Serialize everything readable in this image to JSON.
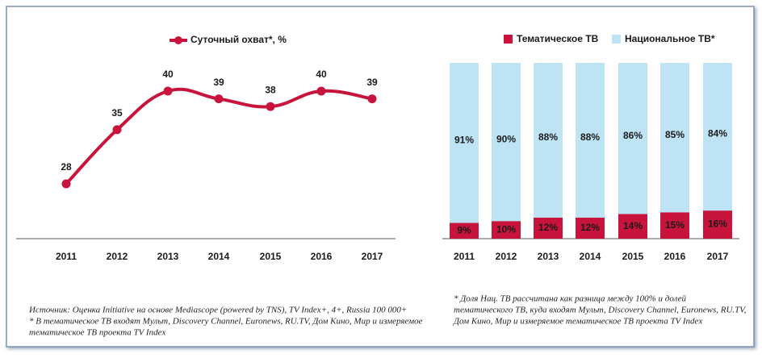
{
  "chart_data": [
    {
      "type": "line",
      "categories": [
        "2011",
        "2012",
        "2013",
        "2014",
        "2015",
        "2016",
        "2017"
      ],
      "series": [
        {
          "name": "Суточный охват*, %",
          "color": "#c8143c",
          "values": [
            28,
            35,
            40,
            39,
            38,
            40,
            39
          ]
        }
      ]
    },
    {
      "type": "stacked-bar",
      "categories": [
        "2011",
        "2012",
        "2013",
        "2014",
        "2015",
        "2016",
        "2017"
      ],
      "series": [
        {
          "name": "Тематическое ТВ",
          "color": "#c8143c",
          "values": [
            9,
            10,
            12,
            12,
            14,
            15,
            16
          ],
          "value_labels": [
            "9%",
            "10%",
            "12%",
            "12%",
            "14%",
            "15%",
            "16%"
          ]
        },
        {
          "name": "Национальное ТВ*",
          "color": "#bde3f5",
          "values": [
            91,
            90,
            88,
            88,
            86,
            85,
            84
          ],
          "value_labels": [
            "91%",
            "90%",
            "88%",
            "88%",
            "86%",
            "85%",
            "84%"
          ]
        }
      ]
    }
  ],
  "notes": {
    "left": [
      "Источник: Оценка Initiative на основе Mediascope (powered by TNS), TV Index+, 4+, Russia 100 000+",
      "* В тематическое ТВ входят Мульт, Discovery Channel, Euronews, RU.TV, Дом Кино, Мир и измеряемое",
      "тематическое ТВ проекта TV Index"
    ],
    "right": [
      "* Доля Нац. ТВ рассчитана как разница между 100% и долей",
      "тематического ТВ, куда входят Мульт, Discovery Channel, Euronews, RU.TV,",
      "Дом Кино, Мир и  измеряемое тематическое ТВ проекта TV Index"
    ]
  }
}
